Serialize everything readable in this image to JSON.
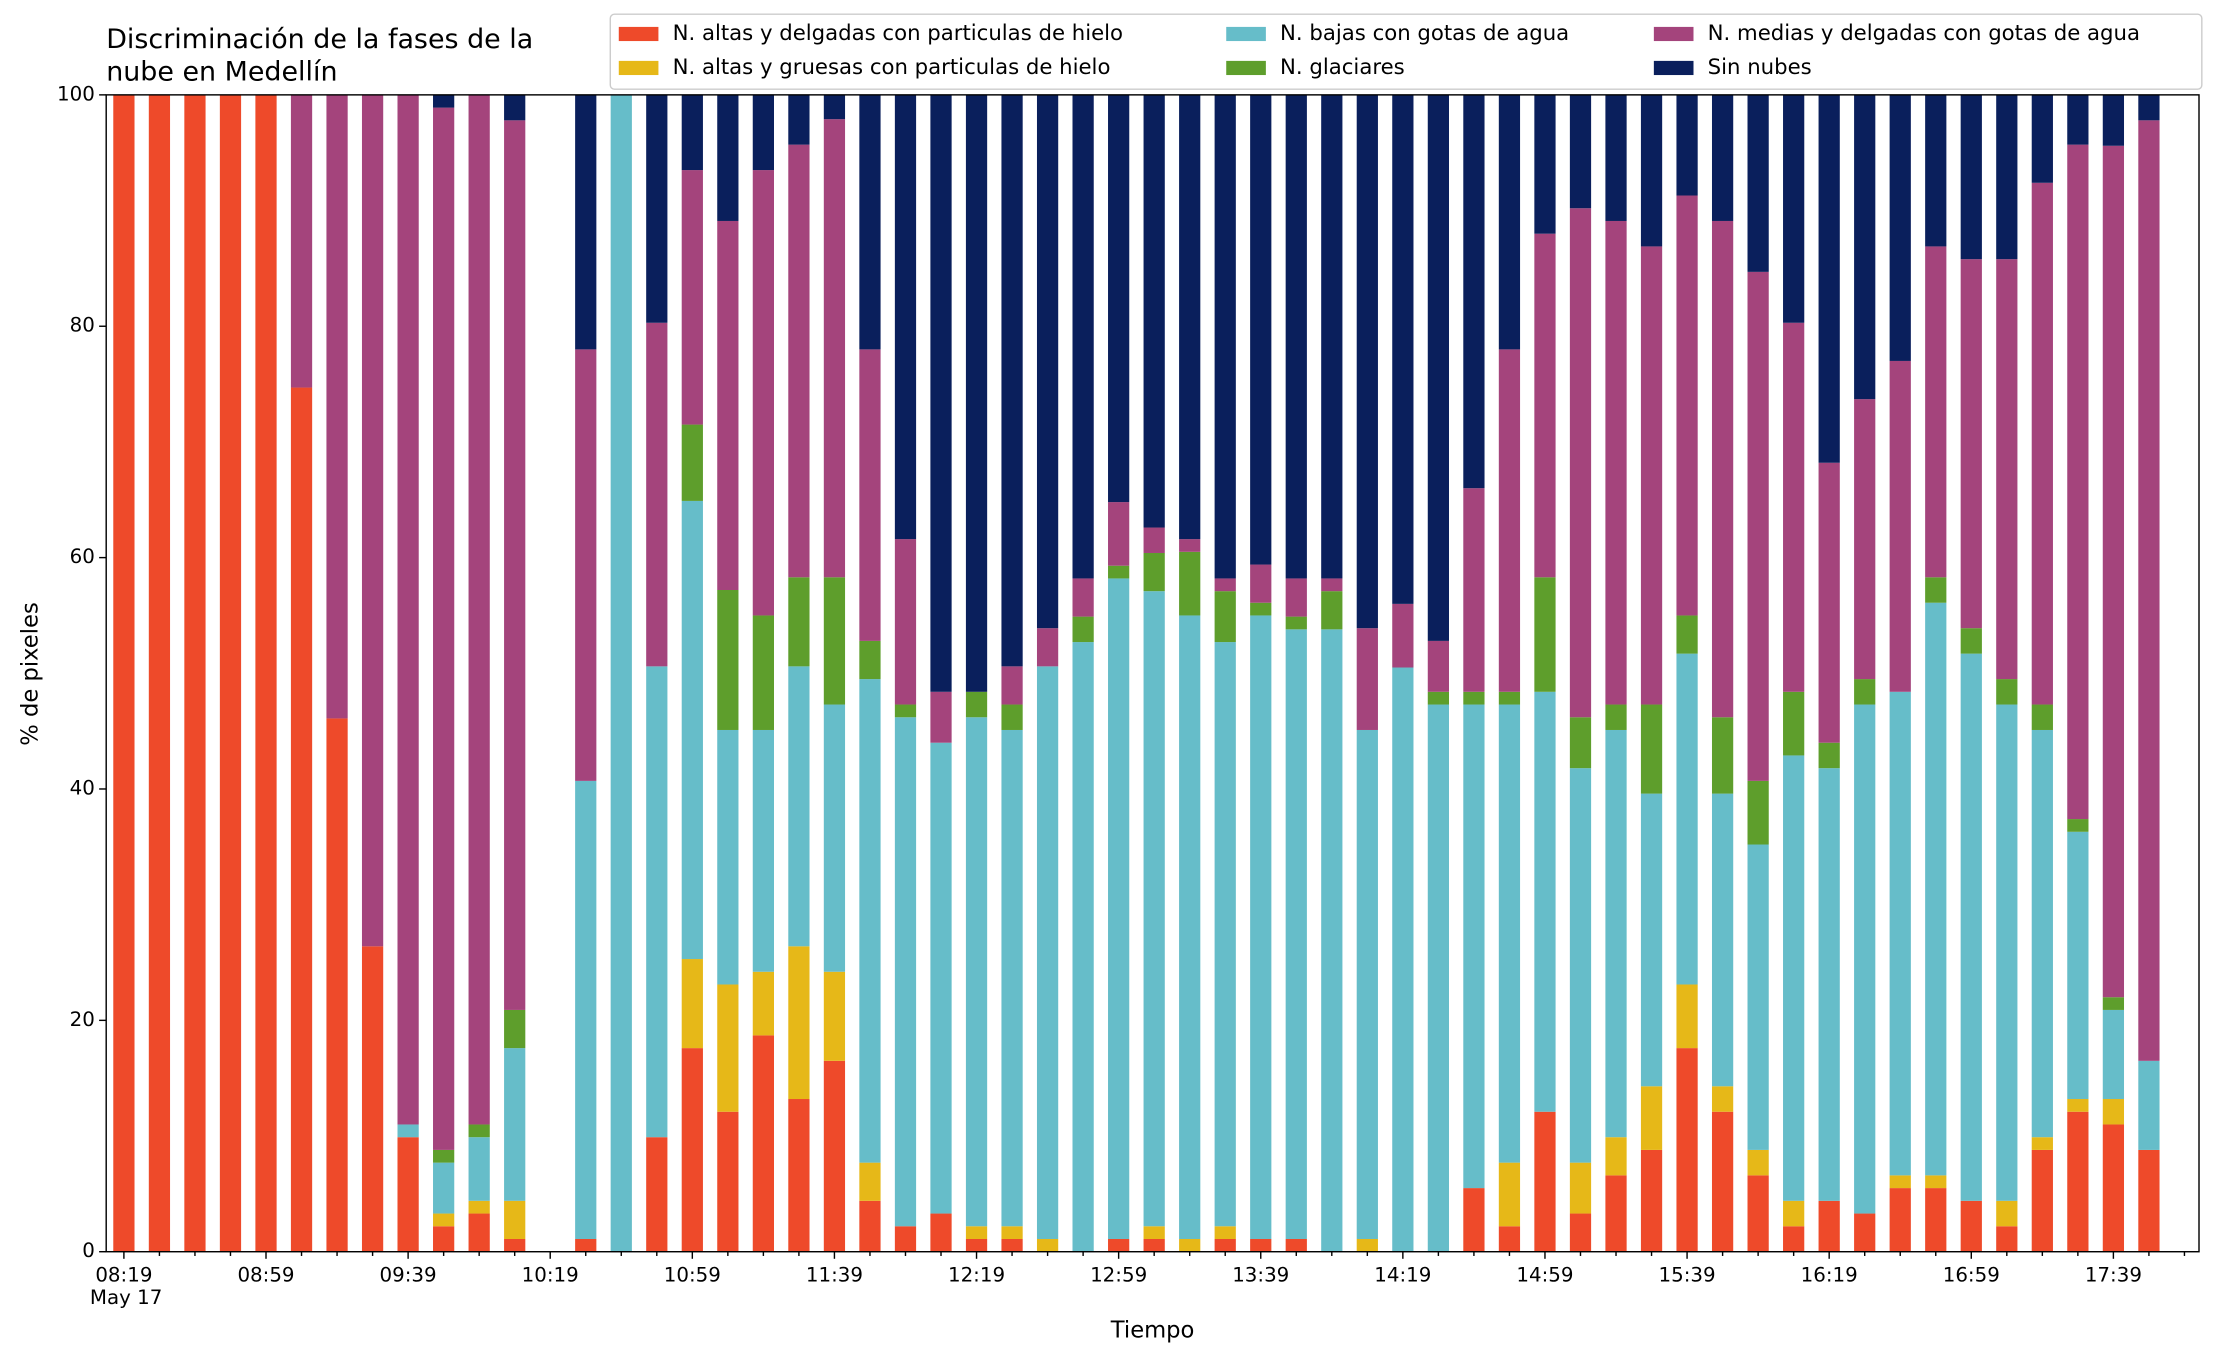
{
  "chart_data": {
    "type": "stacked_bar",
    "title": "Discriminación de la fases de la\nnube en Medellín",
    "x_label": "Tiempo",
    "y_label": "% de pixeles",
    "x_tick_sublabel": "May 17",
    "categories": [
      "08:19",
      null,
      null,
      null,
      "08:59",
      null,
      null,
      null,
      "09:39",
      null,
      null,
      null,
      "10:19",
      null,
      null,
      null,
      "10:59",
      null,
      null,
      null,
      "11:39",
      null,
      null,
      null,
      "12:19",
      null,
      null,
      null,
      "12:59",
      null,
      null,
      null,
      "13:39",
      null,
      null,
      null,
      "14:19",
      null,
      null,
      null,
      "14:59",
      null,
      null,
      null,
      "15:39",
      null,
      null,
      null,
      "16:19",
      null,
      null,
      null,
      "16:59",
      null,
      null,
      null,
      "17:39",
      null
    ],
    "ylim": [
      0,
      100
    ],
    "yticks": [
      0,
      20,
      40,
      60,
      80,
      100
    ],
    "legend": "top",
    "series": [
      {
        "name": "N. altas y delgadas con particulas de hielo",
        "color": "#ee4a2a",
        "values": [
          100,
          100,
          100,
          100,
          100,
          74.7,
          46.1,
          26.4,
          9.9,
          2.2,
          3.3,
          1.1,
          null,
          1.1,
          0,
          9.9,
          17.6,
          12.1,
          18.7,
          13.2,
          16.5,
          4.4,
          2.2,
          3.3,
          1.1,
          1.1,
          0,
          0,
          1.1,
          1.1,
          0,
          1.1,
          1.1,
          1.1,
          0,
          0,
          0,
          0,
          5.5,
          2.2,
          12.1,
          3.3,
          6.6,
          8.8,
          17.6,
          12.1,
          6.6,
          2.2,
          4.4,
          3.3,
          5.5,
          5.5,
          4.4,
          2.2,
          8.8,
          12.1,
          11,
          8.8
        ]
      },
      {
        "name": "N. altas y gruesas con particulas de hielo",
        "color": "#e6b818",
        "values": [
          0,
          0,
          0,
          0,
          0,
          0,
          0,
          0,
          0,
          1.1,
          1.1,
          3.3,
          null,
          0,
          0,
          0,
          7.7,
          11,
          5.5,
          13.2,
          7.7,
          3.3,
          0,
          0,
          1.1,
          1.1,
          1.1,
          0,
          0,
          1.1,
          1.1,
          1.1,
          0,
          0,
          0,
          1.1,
          0,
          0,
          0,
          5.5,
          0,
          4.4,
          3.3,
          5.5,
          5.5,
          2.2,
          2.2,
          2.2,
          0,
          0,
          1.1,
          1.1,
          0,
          2.2,
          1.1,
          1.1,
          2.2,
          0
        ]
      },
      {
        "name": "N. bajas con gotas de agua",
        "color": "#66bdc9",
        "values": [
          0,
          0,
          0,
          0,
          0,
          0,
          0,
          0,
          1.1,
          4.4,
          5.5,
          13.2,
          null,
          39.6,
          100,
          40.7,
          39.6,
          22,
          20.9,
          24.2,
          23.1,
          41.8,
          44,
          40.7,
          44,
          42.9,
          49.5,
          52.7,
          57.1,
          54.9,
          53.9,
          50.5,
          53.9,
          52.7,
          53.8,
          44,
          50.5,
          47.3,
          41.8,
          39.6,
          36.3,
          34.1,
          35.2,
          25.3,
          28.6,
          25.3,
          26.4,
          38.5,
          37.4,
          44,
          41.8,
          49.5,
          47.3,
          42.9,
          35.2,
          23.1,
          7.7,
          7.7
        ]
      },
      {
        "name": "N. glaciares",
        "color": "#5e9e2c",
        "values": [
          0,
          0,
          0,
          0,
          0,
          0,
          0,
          0,
          0,
          1.1,
          1.1,
          3.3,
          null,
          0,
          0,
          0,
          6.6,
          12.1,
          9.9,
          7.7,
          11,
          3.3,
          1.1,
          0,
          2.2,
          2.2,
          0,
          2.2,
          1.1,
          3.3,
          5.5,
          4.4,
          1.1,
          1.1,
          3.3,
          0,
          0,
          1.1,
          1.1,
          1.1,
          9.9,
          4.4,
          2.2,
          7.7,
          3.3,
          6.6,
          5.5,
          5.5,
          2.2,
          2.2,
          0,
          2.2,
          2.2,
          2.2,
          2.2,
          1.1,
          1.1,
          0
        ]
      },
      {
        "name": "N. medias y delgadas con gotas de agua",
        "color": "#a4447c",
        "values": [
          0,
          0,
          0,
          0,
          0,
          25.3,
          53.9,
          73.6,
          89,
          90.1,
          89,
          76.9,
          null,
          37.3,
          0,
          29.7,
          22,
          31.9,
          38.5,
          37.4,
          39.6,
          25.2,
          14.3,
          4.4,
          0,
          3.3,
          3.3,
          3.3,
          5.5,
          2.2,
          1.1,
          1.1,
          3.3,
          3.3,
          1.1,
          8.8,
          5.5,
          4.4,
          17.6,
          29.6,
          29.7,
          44,
          41.8,
          39.6,
          36.3,
          42.9,
          44,
          31.9,
          24.2,
          24.2,
          28.6,
          28.6,
          31.9,
          36.3,
          45.1,
          58.3,
          73.6,
          81.3
        ]
      },
      {
        "name": "Sin nubes",
        "color": "#0a1f5c",
        "values": [
          0,
          0,
          0,
          0,
          0,
          0,
          0,
          0,
          0,
          1.1,
          0,
          2.2,
          null,
          22,
          0,
          19.7,
          6.5,
          10.9,
          6.5,
          4.3,
          2.1,
          22,
          38.4,
          51.6,
          51.6,
          49.4,
          46.1,
          41.8,
          35.2,
          37.4,
          38.4,
          41.8,
          40.6,
          41.8,
          41.8,
          46.1,
          44,
          47.2,
          34,
          22,
          12,
          9.8,
          10.9,
          13.1,
          8.7,
          10.9,
          15.3,
          19.7,
          31.8,
          26.3,
          23,
          13.1,
          14.2,
          14.2,
          7.6,
          4.3,
          4.4,
          2.2
        ]
      }
    ]
  }
}
